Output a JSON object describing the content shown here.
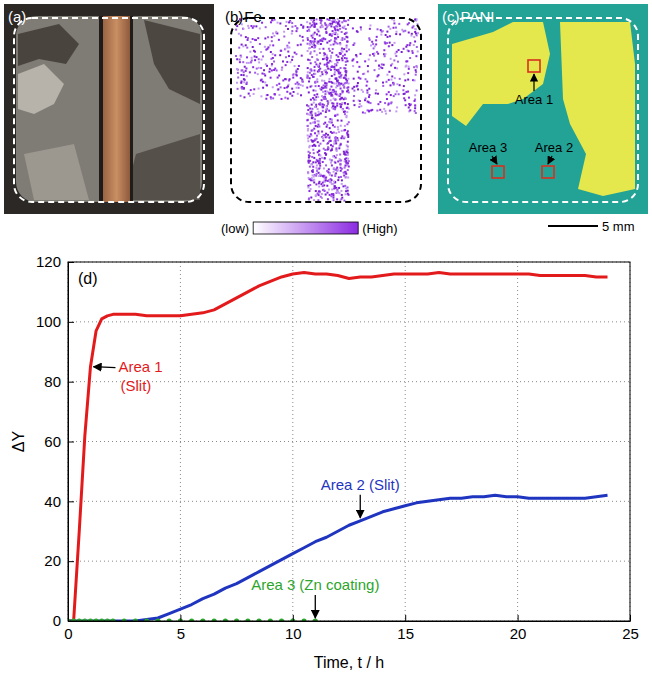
{
  "images": [
    {
      "label": "(a)"
    },
    {
      "label": "(b)",
      "title": "Fe",
      "colorbar": {
        "low": "(low)",
        "high": "(High)"
      }
    },
    {
      "label": "(c)",
      "title": "PANI",
      "areas": [
        "Area 1",
        "Area 2",
        "Area 3"
      ],
      "scale_bar": "5 mm"
    }
  ],
  "chart_data": {
    "type": "line",
    "label": "(d)",
    "xlabel": "Time, t / h",
    "ylabel": "ΔY",
    "x": [
      0,
      0.25,
      0.5,
      0.75,
      1,
      1.25,
      1.5,
      1.75,
      2,
      2.5,
      3,
      3.5,
      4,
      4.5,
      5,
      5.5,
      6,
      6.5,
      7,
      7.5,
      8,
      8.5,
      9,
      9.5,
      10,
      10.5,
      11,
      11.5,
      12,
      12.5,
      13,
      13.5,
      14,
      14.5,
      15,
      15.5,
      16,
      16.5,
      17,
      17.5,
      18,
      18.5,
      19,
      19.5,
      20,
      20.5,
      21,
      21.5,
      22,
      22.5,
      23,
      23.5,
      24
    ],
    "xlim": [
      0,
      25
    ],
    "xticks": [
      0,
      5,
      10,
      15,
      20,
      25
    ],
    "ylim": [
      0,
      120
    ],
    "yticks": [
      0,
      20,
      40,
      60,
      80,
      100,
      120
    ],
    "grid": true,
    "series": [
      {
        "name": "Area 1",
        "label": "(Slit)",
        "color": "#e31a1c",
        "line_style": "solid",
        "annotation": {
          "x": 1,
          "y": 85
        },
        "values": [
          0,
          0,
          30,
          62,
          85,
          97,
          101,
          102,
          102.5,
          102.5,
          102.5,
          102,
          102,
          102,
          102,
          102.5,
          103,
          104,
          106,
          108,
          110,
          112,
          113.5,
          115,
          116,
          116.5,
          116,
          116,
          115.5,
          114.5,
          115,
          115,
          115.5,
          116,
          116,
          116,
          116,
          116.5,
          116,
          116,
          116,
          116,
          116,
          116,
          116,
          116,
          115.5,
          115.5,
          115.5,
          115.5,
          115.5,
          115,
          115
        ]
      },
      {
        "name": "Area 2",
        "label": "(Slit)",
        "color": "#1f35c0",
        "line_style": "solid",
        "annotation": {
          "x": 13,
          "y": 33.5
        },
        "values": [
          0,
          0,
          0,
          0,
          0,
          0,
          0,
          0,
          0,
          0,
          0,
          0.5,
          1,
          2.5,
          4,
          5.5,
          7.5,
          9,
          11,
          12.5,
          14.5,
          16.5,
          18.5,
          20.5,
          22.5,
          24.5,
          26.5,
          28,
          30,
          32,
          33.5,
          35,
          36.5,
          37.5,
          38.5,
          39.5,
          40,
          40.5,
          41,
          41,
          41.5,
          41.5,
          42,
          41.5,
          41.5,
          41,
          41,
          41,
          41,
          41,
          41,
          41.5,
          42
        ]
      },
      {
        "name": "Area 3",
        "label": "(Zn coating)",
        "color": "#2ca52c",
        "line_style": "none",
        "marker": "circle",
        "annotation": {
          "x": 11,
          "y": 0
        },
        "values": [
          0,
          0,
          0,
          0,
          0,
          0,
          0,
          0,
          0,
          0,
          0,
          0,
          0,
          0,
          0,
          0,
          0,
          0,
          0,
          0,
          0,
          0,
          0,
          0,
          0,
          0,
          0,
          null,
          null,
          null,
          null,
          null,
          null,
          null,
          null,
          null,
          null,
          null,
          null,
          null,
          null,
          null,
          null,
          null,
          null,
          null,
          null,
          null,
          null,
          null,
          null,
          null,
          null
        ]
      }
    ]
  }
}
